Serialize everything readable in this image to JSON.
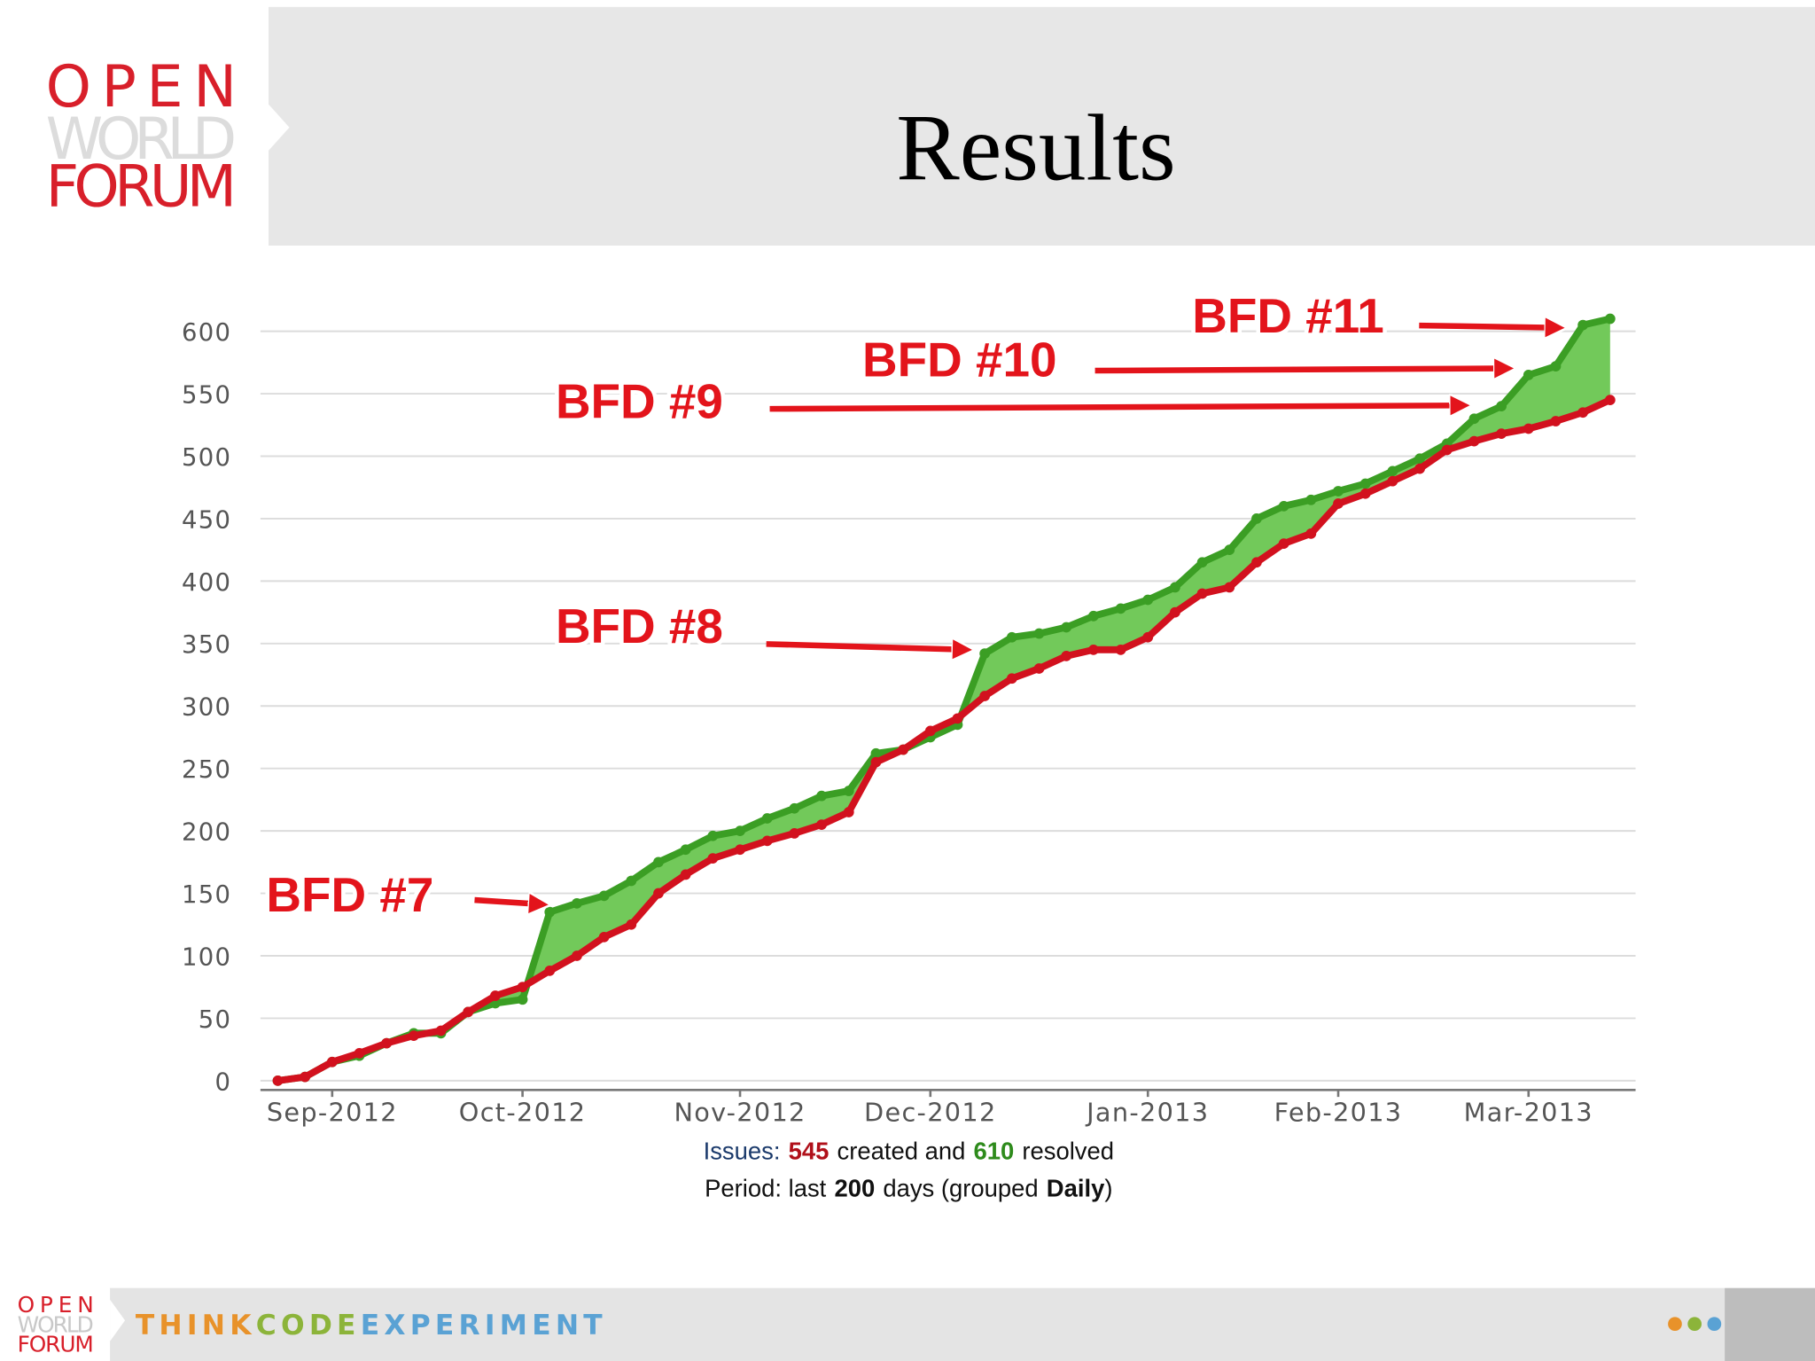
{
  "logo": {
    "line1": "OPEN",
    "line2": "WORLD",
    "line3": "FORUM"
  },
  "header": {
    "title": "Results"
  },
  "chart_data": {
    "type": "line",
    "categories": [
      null,
      null,
      "Sep-2012",
      null,
      null,
      null,
      null,
      null,
      null,
      "Oct-2012",
      null,
      null,
      null,
      null,
      null,
      null,
      null,
      "Nov-2012",
      null,
      null,
      null,
      null,
      null,
      null,
      "Dec-2012",
      null,
      null,
      null,
      null,
      null,
      null,
      null,
      "Jan-2013",
      null,
      null,
      null,
      null,
      null,
      null,
      "Feb-2013",
      null,
      null,
      null,
      null,
      null,
      null,
      "Mar-2013",
      null,
      null,
      null
    ],
    "series": [
      {
        "color": "#d2111e",
        "values": [
          0,
          3,
          15,
          22,
          30,
          36,
          40,
          55,
          68,
          75,
          88,
          100,
          115,
          125,
          150,
          165,
          178,
          185,
          192,
          198,
          205,
          215,
          255,
          265,
          280,
          290,
          308,
          322,
          330,
          340,
          345,
          345,
          355,
          375,
          390,
          395,
          415,
          430,
          438,
          462,
          470,
          480,
          490,
          505,
          512,
          518,
          522,
          528,
          535,
          545
        ]
      },
      {
        "color": "#3b9e24",
        "values": [
          0,
          3,
          15,
          20,
          30,
          38,
          38,
          55,
          62,
          65,
          135,
          142,
          148,
          160,
          175,
          185,
          196,
          200,
          210,
          218,
          228,
          232,
          262,
          265,
          275,
          285,
          342,
          355,
          358,
          363,
          372,
          378,
          385,
          395,
          415,
          425,
          450,
          460,
          465,
          472,
          478,
          488,
          498,
          510,
          530,
          540,
          565,
          572,
          605,
          610
        ]
      }
    ],
    "fill_color": "#72c95a",
    "ylim": [
      0,
      600
    ],
    "yticks": [
      0,
      50,
      100,
      150,
      200,
      250,
      300,
      350,
      400,
      450,
      500,
      550,
      600
    ],
    "grid": true,
    "annotations": [
      "BFD #7",
      "BFD #8",
      "BFD #9",
      "BFD #10",
      "BFD #11"
    ],
    "caption": {
      "issues": [
        "Issues:",
        545,
        "created and",
        610,
        "resolved"
      ],
      "period": [
        "Period: last",
        200,
        "days (grouped",
        "Daily",
        ")"
      ]
    }
  },
  "footer": {
    "logo1": "OPEN",
    "logo2": "WORLD",
    "logo3": "FORUM",
    "think": "THINK",
    "code": "CODE",
    "experiment": "EXPERIMENT"
  }
}
